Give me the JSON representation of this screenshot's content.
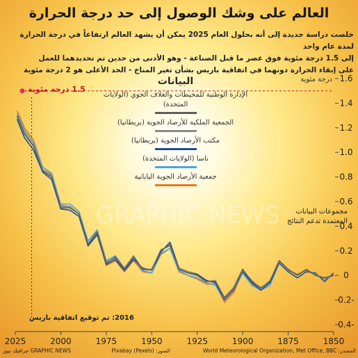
{
  "chart_data": {
    "type": "line",
    "title": "العالم على وشك الوصول إلى حد درجة الحرارة",
    "subtitle": [
      "خلصت دراسة جديدة إلى أنه بحلول العام 2025 يمكن أن يشهد العالم ارتفاعاً في درجة الحرارة لمدة عام واحد",
      "إلى 1.5 درجة مئوية فوق عصر ما قبل الصناعة - وهو الأدنى من حدين تم تحديدهما للعمل",
      "على إبقاء الحرارة دونهما في اتفاقية باريس بشأن تغير المناخ - الحد الأعلى هو 2 درجة مئوية"
    ],
    "y_unit": "درجة مئوية",
    "legend_title": "البيانات",
    "annotation": "مجموعات البيانات المعتمدة تدعم النتائج",
    "threshold": {
      "value": 1.5,
      "label": "1.5 درجة مئوية"
    },
    "paris": {
      "value": 2016,
      "label": "2016: تم توقيع اتفاقية باريس"
    },
    "source": "المصدر: World Meteorological Organization, Met Office, BBC",
    "photos": "الصور: (Pixabay (Pexels",
    "credit": "GRAPHIC NEWS جرافيك نيوز",
    "watermark": "GRAPHIC NEWS",
    "x": [
      1850,
      1855,
      1860,
      1865,
      1870,
      1875,
      1880,
      1885,
      1890,
      1895,
      1900,
      1905,
      1910,
      1915,
      1920,
      1925,
      1930,
      1935,
      1940,
      1945,
      1950,
      1955,
      1960,
      1965,
      1970,
      1975,
      1980,
      1985,
      1990,
      1995,
      2000,
      2005,
      2010,
      2015,
      2020,
      2024
    ],
    "xlim": [
      2025,
      1850
    ],
    "xticks": [
      2025,
      2000,
      1975,
      1950,
      1925,
      1900,
      1875,
      1850
    ],
    "ylim": [
      -0.4,
      1.6
    ],
    "yticks": [
      {
        "value": -0.4,
        "label": "0.4-"
      },
      {
        "value": -0.2,
        "label": "0.2-"
      },
      0,
      0.2,
      0.4,
      0.6,
      0.8,
      {
        "value": 1,
        "label": "1.0"
      },
      1.2,
      1.4,
      1.6
    ],
    "series": [
      {
        "name": "جمعية الأرصاد الجوية اليابانية",
        "color": "#e8771e",
        "values": [
          null,
          null,
          null,
          null,
          null,
          null,
          null,
          null,
          -0.12,
          -0.07,
          0.03,
          -0.14,
          -0.22,
          -0.07,
          -0.07,
          -0.03,
          0.0,
          0.03,
          0.22,
          0.17,
          0.02,
          0.03,
          0.12,
          0.03,
          0.12,
          0.08,
          0.34,
          0.24,
          0.5,
          0.56,
          0.57,
          0.82,
          0.88,
          1.1,
          1.2,
          1.34
        ]
      },
      {
        "name": "ناسا (الولايات المتحدة)",
        "color": "#49a6e3",
        "values": [
          null,
          null,
          null,
          null,
          null,
          null,
          0.1,
          -0.08,
          -0.12,
          -0.08,
          0.02,
          -0.12,
          -0.2,
          -0.08,
          -0.06,
          -0.02,
          0.0,
          0.04,
          0.22,
          0.18,
          0.02,
          0.04,
          0.14,
          0.06,
          0.16,
          0.12,
          0.37,
          0.28,
          0.52,
          0.58,
          0.58,
          0.83,
          0.88,
          1.08,
          1.18,
          1.32
        ]
      },
      {
        "name": "مكتب الأرصاد الجوية (بريطانيا)",
        "color": "#1d4f91",
        "values": [
          0.02,
          -0.05,
          0.02,
          0.03,
          -0.02,
          0.03,
          0.1,
          -0.06,
          -0.12,
          -0.06,
          0.03,
          -0.12,
          -0.2,
          -0.06,
          -0.04,
          0.01,
          0.03,
          0.06,
          0.27,
          0.19,
          0.04,
          0.06,
          0.13,
          0.04,
          0.13,
          0.09,
          0.33,
          0.24,
          0.48,
          0.53,
          0.54,
          0.78,
          0.84,
          1.02,
          1.12,
          1.27
        ]
      },
      {
        "name": "الجمعية الملكية للأرصاد الجوية (بريطانيا)",
        "color": "#8a8a8a",
        "values": [
          0.0,
          -0.03,
          0.01,
          0.04,
          0.01,
          0.04,
          0.11,
          -0.04,
          -0.11,
          -0.04,
          0.04,
          -0.11,
          -0.19,
          -0.04,
          -0.05,
          0.0,
          0.03,
          0.06,
          0.24,
          0.21,
          0.04,
          0.05,
          0.16,
          0.06,
          0.14,
          0.11,
          0.36,
          0.26,
          0.5,
          0.56,
          0.56,
          0.81,
          0.86,
          1.06,
          1.16,
          1.29
        ]
      },
      {
        "name": "الإدارة الوطنية للمحيطات والغلاف الجوي (الولايات المتحدة)",
        "color": "#5e5e5e",
        "values": [
          0.0,
          -0.02,
          0.0,
          0.05,
          0.0,
          0.05,
          0.12,
          -0.05,
          -0.1,
          -0.05,
          0.05,
          -0.1,
          -0.18,
          -0.05,
          -0.05,
          0.0,
          0.02,
          0.05,
          0.25,
          0.2,
          0.05,
          0.05,
          0.15,
          0.05,
          0.15,
          0.1,
          0.35,
          0.25,
          0.5,
          0.55,
          0.55,
          0.8,
          0.85,
          1.05,
          1.15,
          1.3
        ]
      }
    ]
  }
}
